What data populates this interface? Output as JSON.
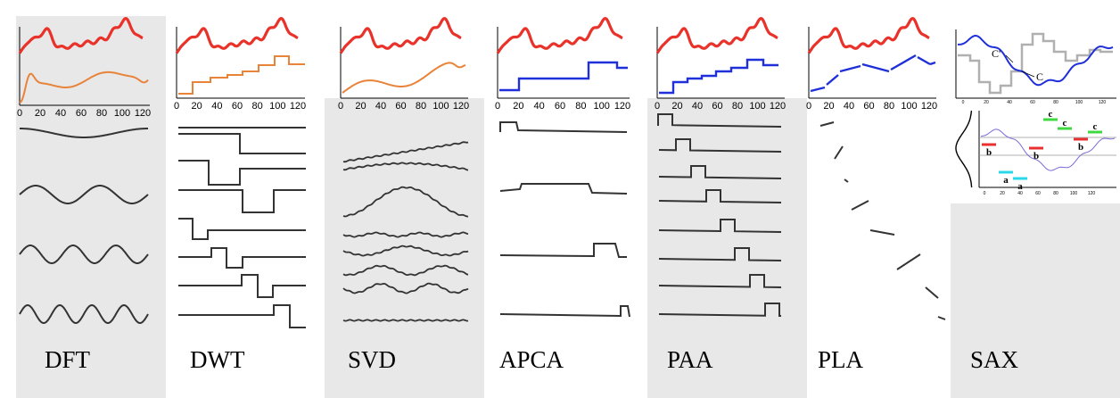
{
  "panels": [
    {
      "id": "dft",
      "label": "DFT",
      "shaded": true
    },
    {
      "id": "dwt",
      "label": "DWT",
      "shaded": false
    },
    {
      "id": "svd",
      "label": "SVD",
      "shaded": true
    },
    {
      "id": "apca",
      "label": "APCA",
      "shaded": false
    },
    {
      "id": "paa",
      "label": "PAA",
      "shaded": true
    },
    {
      "id": "pla",
      "label": "PLA",
      "shaded": false
    },
    {
      "id": "sax",
      "label": "SAX",
      "shaded": true
    }
  ],
  "x_ticks": [
    "0",
    "20",
    "40",
    "60",
    "80",
    "100",
    "120"
  ],
  "sax_inset": {
    "x_ticks": [
      "0",
      "20",
      "40",
      "60",
      "80",
      "100",
      "120"
    ],
    "annotations": [
      "C'",
      "C"
    ],
    "symbols": [
      "b",
      "a",
      "a",
      "b",
      "c",
      "c",
      "b",
      "c"
    ]
  },
  "colors": {
    "original_series": "#e8322a",
    "approximation_orange": "#e8833a",
    "approximation_blue": "#1f2fd9",
    "basis_lines": "#333333",
    "panel_shade": "#e8e8e8",
    "sax_a": "#2ad8e8",
    "sax_b": "#e83030",
    "sax_c": "#40d840",
    "sax_gray": "#b0b0b0"
  }
}
